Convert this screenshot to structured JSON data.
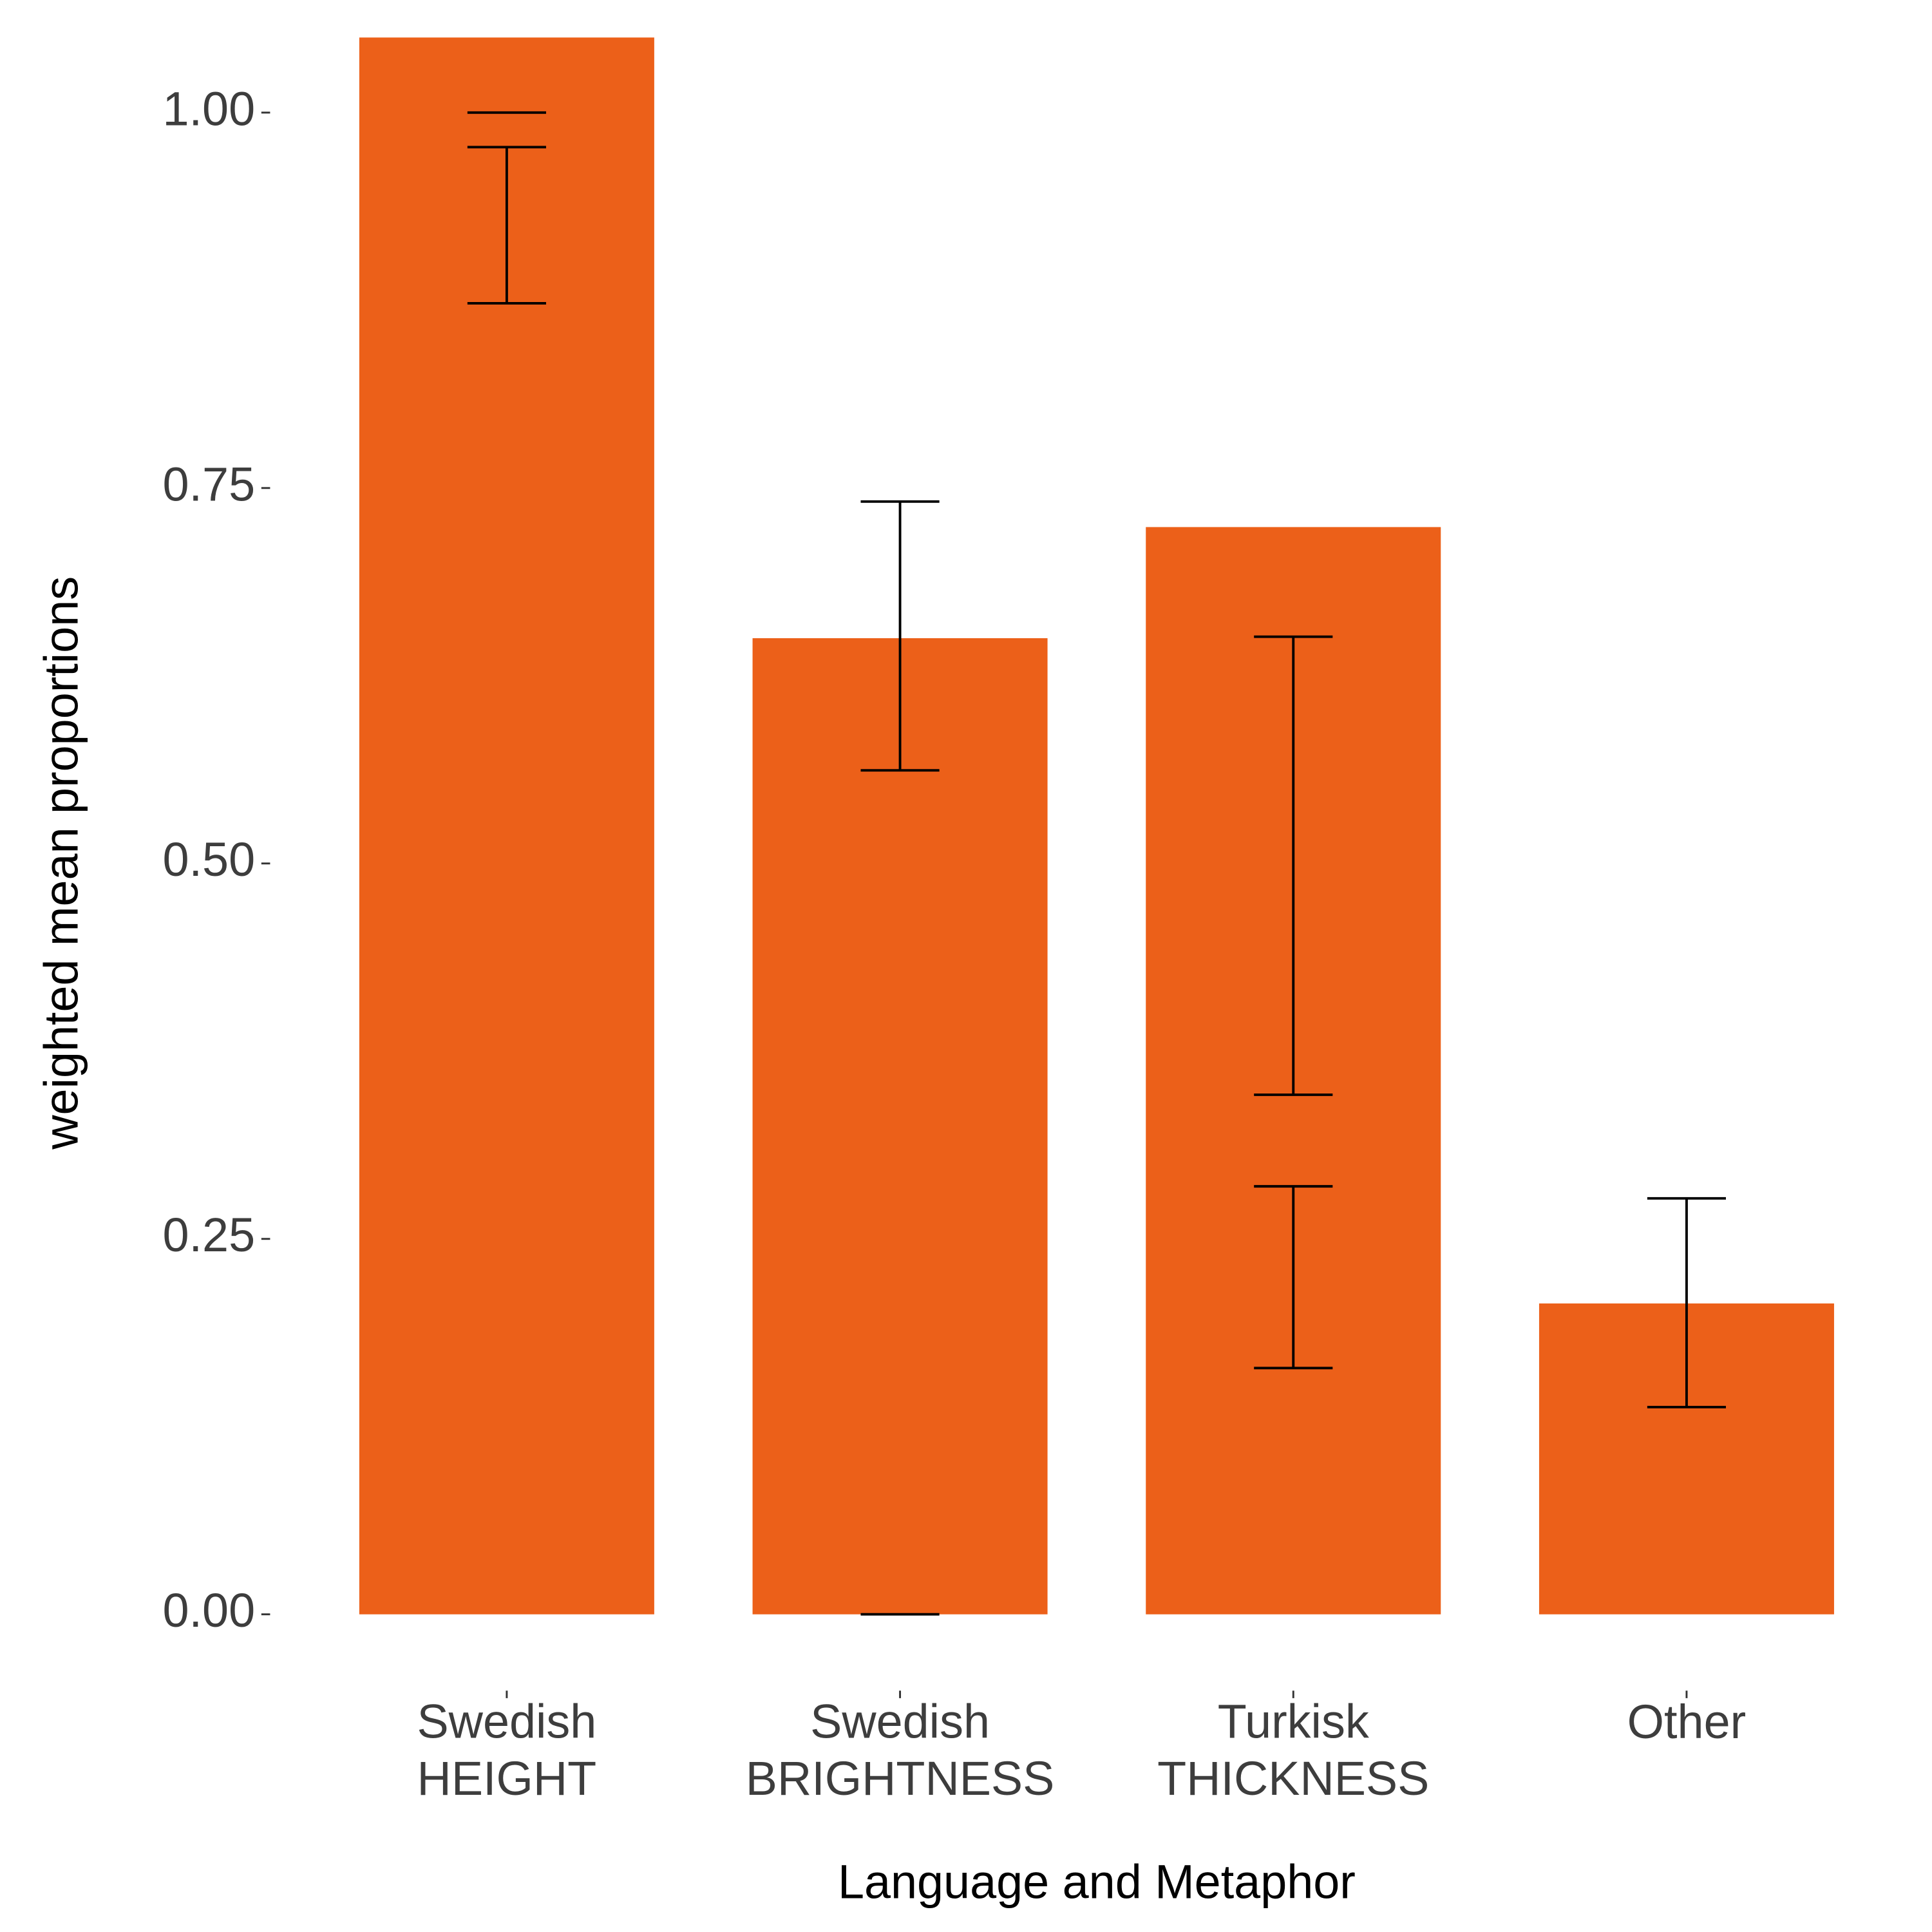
{
  "chart_data": {
    "type": "bar",
    "x_label": "Language and Metaphor",
    "y_label": "weighted mean proportions",
    "categories": [
      "Swedish\nHEIGHT",
      "Swedish\nBRIGHTNESS",
      "Turkisk\nTHICKNESS",
      "Other"
    ],
    "values": [
      1.05,
      0.65,
      0.724,
      0.207
    ],
    "color": "#ec6019",
    "error_bars": [
      {
        "low": [
          0.873,
          0.562,
          0.346,
          0.138
        ],
        "high": [
          0.977,
          0.741,
          0.651,
          0.277
        ]
      },
      {
        "low": [
          1.0,
          0.0,
          0.164,
          null
        ],
        "high": [
          1.0,
          0.0,
          0.285,
          null
        ]
      }
    ],
    "ylim": [
      -0.05,
      1.05
    ],
    "yticks": [
      {
        "value": 0,
        "label": "0.00"
      },
      {
        "value": 0.25,
        "label": "0.25"
      },
      {
        "value": 0.5,
        "label": "0.50"
      },
      {
        "value": 0.75,
        "label": "0.75"
      },
      {
        "value": 1,
        "label": "1.00"
      }
    ],
    "grid": false
  }
}
